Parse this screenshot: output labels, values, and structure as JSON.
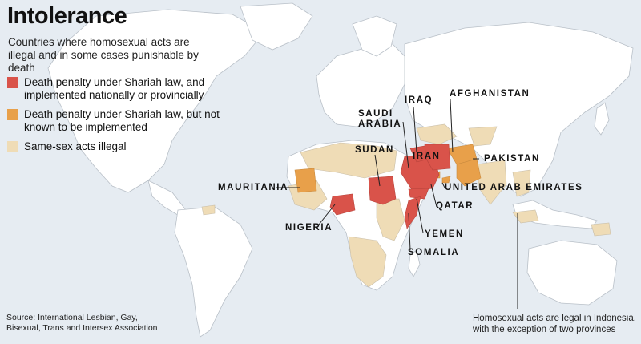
{
  "title": "Intolerance",
  "subtitle": "Countries where homosexual acts are illegal and in some cases punishable by death",
  "colors": {
    "ocean": "#e6ecf2",
    "land": "#ffffff",
    "border": "#b9c0c8",
    "death_implemented": "#d9534a",
    "death_not_implemented": "#e8a04a",
    "illegal": "#efdcb6"
  },
  "legend": [
    {
      "label": "Death penalty under Shariah law, and implemented nationally or provincially",
      "color": "#d9534a"
    },
    {
      "label": "Death penalty under Shariah law, but not known to be implemented",
      "color": "#e8a04a"
    },
    {
      "label": "Same-sex acts illegal",
      "color": "#efdcb6"
    }
  ],
  "labels": {
    "mauritania": "MAURITANIA",
    "nigeria": "NIGERIA",
    "sudan": "SUDAN",
    "saudi_arabia": "SAUDI ARABIA",
    "iraq": "IRAQ",
    "iran": "IRAN",
    "afghanistan": "AFGHANISTAN",
    "pakistan": "PAKISTAN",
    "uae": "UNITED ARAB EMIRATES",
    "qatar": "QATAR",
    "yemen": "YEMEN",
    "somalia": "SOMALIA"
  },
  "note": "Homosexual acts are legal in Indonesia, with the exception of two provinces",
  "source": "Source: International Lesbian, Gay, Bisexual, Trans and Intersex Association"
}
